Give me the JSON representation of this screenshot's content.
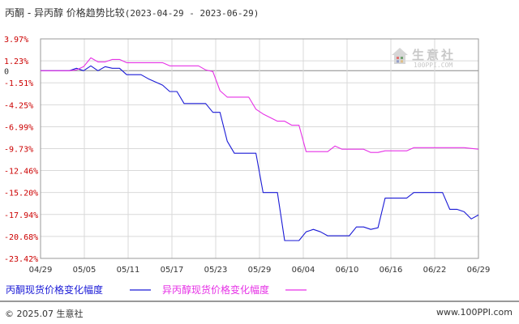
{
  "header": {
    "title": "丙酮 - 异丙醇 价格趋势比较",
    "date_range": "(2023-04-29 - 2023-06-29)"
  },
  "watermark": {
    "name": "生意社",
    "site": "100PPI.COM"
  },
  "footer": {
    "copyright": "© 2025.07 生意社",
    "site": "www.100PPI.com"
  },
  "colors": {
    "acetone": "#1a1ad6",
    "isopropanol": "#e632e6",
    "ytick": "#cc0000",
    "grid": "#d9d9d9"
  },
  "chart_data": {
    "type": "line",
    "x_ticks": [
      "04/29",
      "05/05",
      "05/11",
      "05/17",
      "05/23",
      "05/29",
      "06/04",
      "06/10",
      "06/16",
      "06/22",
      "06/29"
    ],
    "y_ticks": [
      "3.97%",
      "1.23%",
      "0",
      "-1.51%",
      "-4.25%",
      "-6.99%",
      "-9.73%",
      "-12.46%",
      "-15.20%",
      "-17.94%",
      "-20.68%",
      "-23.42%"
    ],
    "ylim": [
      -23.42,
      3.97
    ],
    "xlim": [
      "2023-04-29",
      "2023-06-29"
    ],
    "grid": true,
    "legend_position": "bottom",
    "series": [
      {
        "name": "丙酮现货价格变化幅度",
        "color": "#1a1ad6",
        "points": [
          [
            "2023-04-29",
            0
          ],
          [
            "2023-05-01",
            0
          ],
          [
            "2023-05-03",
            0
          ],
          [
            "2023-05-04",
            0.3
          ],
          [
            "2023-05-05",
            0
          ],
          [
            "2023-05-06",
            0.6
          ],
          [
            "2023-05-07",
            0
          ],
          [
            "2023-05-08",
            0.5
          ],
          [
            "2023-05-09",
            0.3
          ],
          [
            "2023-05-10",
            0.3
          ],
          [
            "2023-05-11",
            -0.5
          ],
          [
            "2023-05-13",
            -0.5
          ],
          [
            "2023-05-14",
            -1.0
          ],
          [
            "2023-05-16",
            -1.8
          ],
          [
            "2023-05-17",
            -2.6
          ],
          [
            "2023-05-18",
            -2.6
          ],
          [
            "2023-05-19",
            -4.1
          ],
          [
            "2023-05-22",
            -4.1
          ],
          [
            "2023-05-23",
            -5.2
          ],
          [
            "2023-05-24",
            -5.2
          ],
          [
            "2023-05-25",
            -8.8
          ],
          [
            "2023-05-26",
            -10.3
          ],
          [
            "2023-05-29",
            -10.3
          ],
          [
            "2023-05-30",
            -15.2
          ],
          [
            "2023-06-01",
            -15.2
          ],
          [
            "2023-06-02",
            -21.2
          ],
          [
            "2023-06-04",
            -21.2
          ],
          [
            "2023-06-05",
            -20.1
          ],
          [
            "2023-06-06",
            -19.8
          ],
          [
            "2023-06-07",
            -20.1
          ],
          [
            "2023-06-08",
            -20.6
          ],
          [
            "2023-06-11",
            -20.6
          ],
          [
            "2023-06-12",
            -19.5
          ],
          [
            "2023-06-13",
            -19.5
          ],
          [
            "2023-06-14",
            -19.8
          ],
          [
            "2023-06-15",
            -19.6
          ],
          [
            "2023-06-16",
            -15.9
          ],
          [
            "2023-06-19",
            -15.9
          ],
          [
            "2023-06-20",
            -15.2
          ],
          [
            "2023-06-24",
            -15.2
          ],
          [
            "2023-06-25",
            -17.3
          ],
          [
            "2023-06-26",
            -17.3
          ],
          [
            "2023-06-27",
            -17.6
          ],
          [
            "2023-06-28",
            -18.5
          ],
          [
            "2023-06-29",
            -18.0
          ]
        ]
      },
      {
        "name": "异丙醇现货价格变化幅度",
        "color": "#e632e6",
        "points": [
          [
            "2023-04-29",
            0
          ],
          [
            "2023-05-03",
            0
          ],
          [
            "2023-05-04",
            0.1
          ],
          [
            "2023-05-05",
            0.5
          ],
          [
            "2023-05-06",
            1.6
          ],
          [
            "2023-05-07",
            1.1
          ],
          [
            "2023-05-08",
            1.1
          ],
          [
            "2023-05-09",
            1.4
          ],
          [
            "2023-05-10",
            1.4
          ],
          [
            "2023-05-11",
            1.0
          ],
          [
            "2023-05-16",
            1.0
          ],
          [
            "2023-05-17",
            0.6
          ],
          [
            "2023-05-21",
            0.6
          ],
          [
            "2023-05-22",
            0.1
          ],
          [
            "2023-05-23",
            -0.1
          ],
          [
            "2023-05-24",
            -2.5
          ],
          [
            "2023-05-25",
            -3.3
          ],
          [
            "2023-05-28",
            -3.3
          ],
          [
            "2023-05-29",
            -4.8
          ],
          [
            "2023-05-30",
            -5.4
          ],
          [
            "2023-06-01",
            -6.3
          ],
          [
            "2023-06-02",
            -6.3
          ],
          [
            "2023-06-03",
            -6.8
          ],
          [
            "2023-06-04",
            -6.8
          ],
          [
            "2023-06-05",
            -10.1
          ],
          [
            "2023-06-08",
            -10.1
          ],
          [
            "2023-06-09",
            -9.4
          ],
          [
            "2023-06-10",
            -9.8
          ],
          [
            "2023-06-13",
            -9.8
          ],
          [
            "2023-06-14",
            -10.2
          ],
          [
            "2023-06-15",
            -10.2
          ],
          [
            "2023-06-16",
            -10.0
          ],
          [
            "2023-06-19",
            -10.0
          ],
          [
            "2023-06-20",
            -9.6
          ],
          [
            "2023-06-27",
            -9.6
          ],
          [
            "2023-06-29",
            -9.8
          ]
        ]
      }
    ]
  }
}
